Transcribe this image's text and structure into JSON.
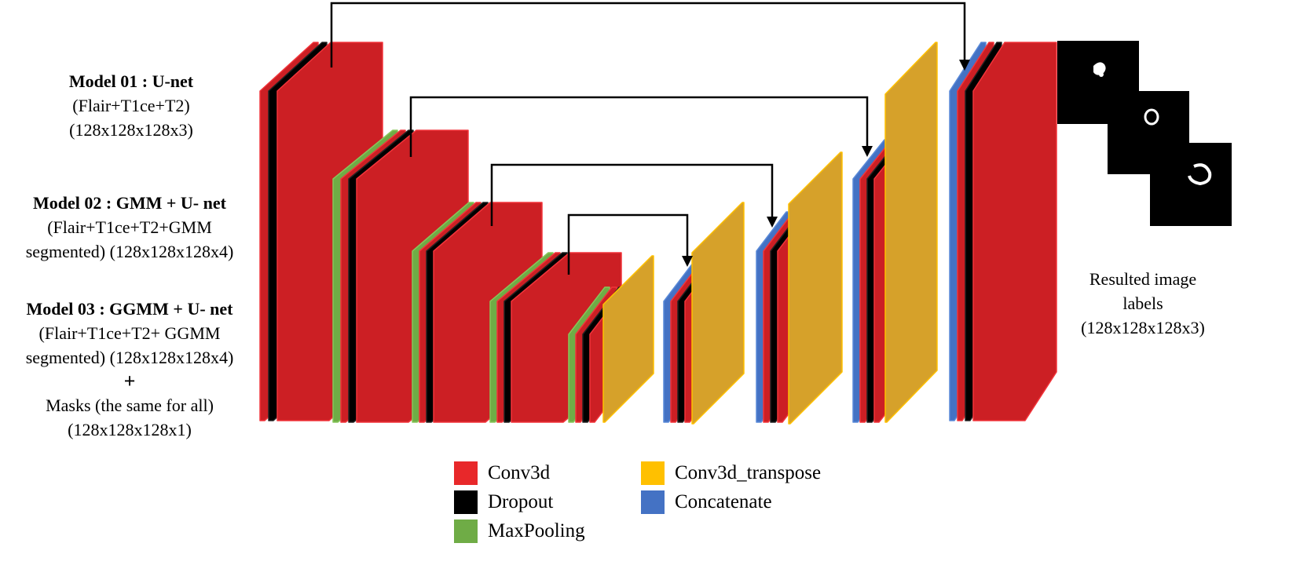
{
  "models": [
    {
      "title": "Model 01  : U-net",
      "lines": [
        "(Flair+T1ce+T2)",
        "(128x128x128x3)"
      ]
    },
    {
      "title": "Model 02 : GMM + U- net",
      "lines": [
        "(Flair+T1ce+T2+GMM",
        "segmented) (128x128x128x4)"
      ]
    },
    {
      "title": "Model 03 : GGMM + U- net",
      "lines": [
        "(Flair+T1ce+T2+ GGMM",
        "segmented) (128x128x128x4)"
      ]
    }
  ],
  "plus": "+",
  "masks": [
    "Masks (the same for all)",
    "(128x128x128x1)"
  ],
  "result": [
    "Resulted image",
    "labels",
    "(128x128x128x3)"
  ],
  "legend": [
    {
      "label": "Conv3d",
      "color": "#e8282a"
    },
    {
      "label": "Dropout",
      "color": "#000000"
    },
    {
      "label": "MaxPooling",
      "color": "#6fac46"
    },
    {
      "label": "Conv3d_transpose",
      "color": "#ffc000"
    },
    {
      "label": "Concatenate",
      "color": "#4472c4"
    }
  ],
  "colors": {
    "conv_face": "#cc1f24",
    "conv_edge": "#f2343a",
    "dropout": "#000000",
    "maxpool": "#6fac46",
    "transpose_face": "#d6a12a",
    "transpose_edge": "#ffc000",
    "concat": "#4472c4",
    "arrow": "#000000"
  }
}
